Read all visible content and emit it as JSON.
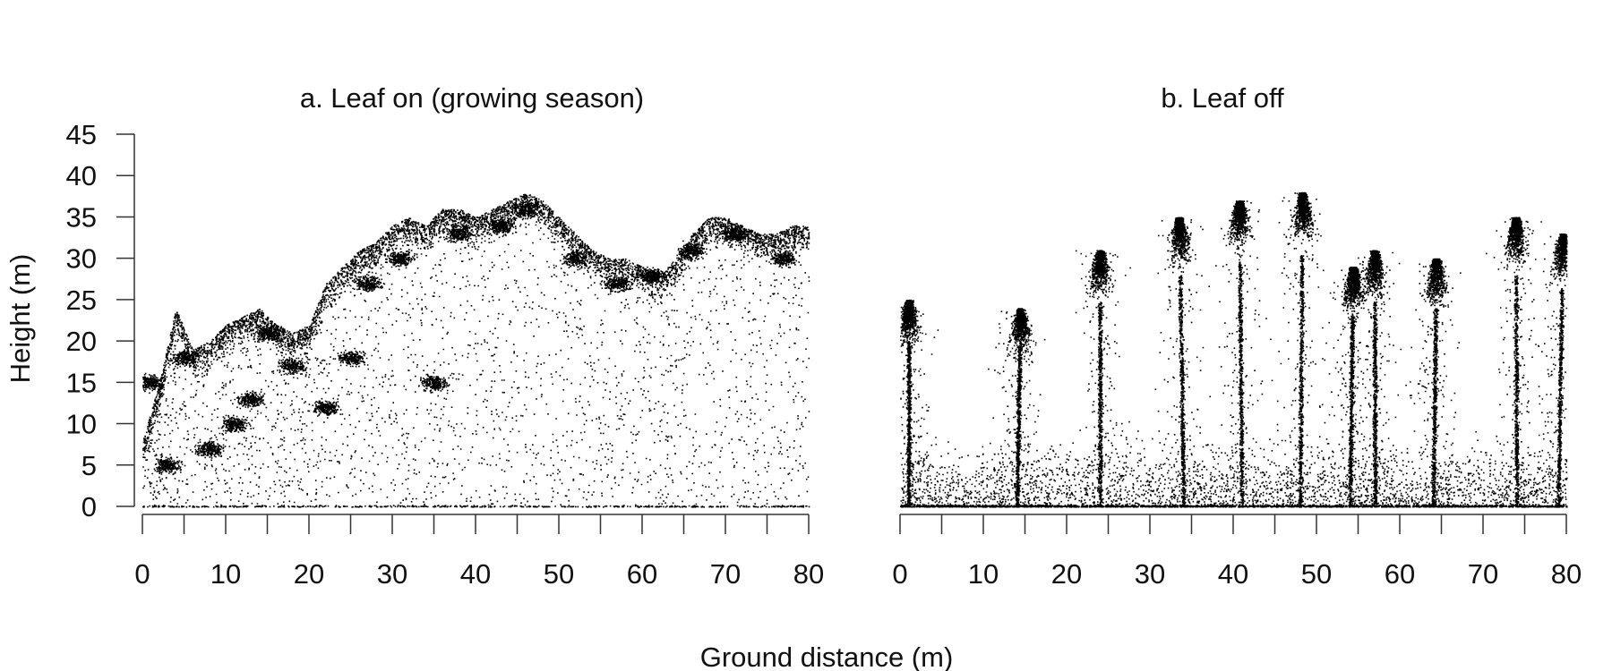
{
  "figure": {
    "xlabel": "Ground distance (m)",
    "ylabel": "Height (m)"
  },
  "chart_data": [
    {
      "type": "scatter",
      "title": "a. Leaf on (growing season)",
      "xlabel": "Ground distance (m)",
      "ylabel": "Height (m)",
      "xlim": [
        0,
        80
      ],
      "ylim": [
        0,
        45
      ],
      "x_ticks": [
        0,
        10,
        20,
        30,
        40,
        50,
        60,
        70,
        80
      ],
      "x_minor_ticks": [
        5,
        15,
        25,
        35,
        45,
        55,
        65,
        75
      ],
      "y_ticks": [
        0,
        5,
        10,
        15,
        20,
        25,
        30,
        35,
        40,
        45
      ],
      "grid": false,
      "point_color": "#000000",
      "canopy_top": [
        [
          0,
          8
        ],
        [
          2,
          15
        ],
        [
          4,
          24
        ],
        [
          6,
          19
        ],
        [
          8,
          20
        ],
        [
          10,
          22
        ],
        [
          12,
          23
        ],
        [
          14,
          24
        ],
        [
          16,
          22
        ],
        [
          18,
          21
        ],
        [
          20,
          22
        ],
        [
          22,
          27
        ],
        [
          24,
          29
        ],
        [
          26,
          31
        ],
        [
          28,
          32
        ],
        [
          30,
          34
        ],
        [
          32,
          35
        ],
        [
          34,
          34
        ],
        [
          36,
          36
        ],
        [
          38,
          36
        ],
        [
          40,
          35
        ],
        [
          42,
          36
        ],
        [
          44,
          37
        ],
        [
          46,
          38
        ],
        [
          48,
          37
        ],
        [
          50,
          35
        ],
        [
          52,
          33
        ],
        [
          54,
          31
        ],
        [
          56,
          30
        ],
        [
          58,
          30
        ],
        [
          60,
          29
        ],
        [
          62,
          28
        ],
        [
          64,
          30
        ],
        [
          66,
          33
        ],
        [
          68,
          35
        ],
        [
          70,
          35
        ],
        [
          72,
          34
        ],
        [
          74,
          33
        ],
        [
          76,
          33
        ],
        [
          78,
          34
        ],
        [
          80,
          34
        ]
      ],
      "dense_clusters": [
        [
          3,
          5
        ],
        [
          8,
          7
        ],
        [
          11,
          10
        ],
        [
          13,
          13
        ],
        [
          15,
          21
        ],
        [
          18,
          17
        ],
        [
          22,
          12
        ],
        [
          25,
          18
        ],
        [
          27,
          27
        ],
        [
          31,
          30
        ],
        [
          35,
          15
        ],
        [
          38,
          33
        ],
        [
          43,
          34
        ],
        [
          46,
          36
        ],
        [
          52,
          30
        ],
        [
          57,
          27
        ],
        [
          61,
          28
        ],
        [
          66,
          31
        ],
        [
          71,
          33
        ],
        [
          77,
          30
        ],
        [
          1,
          15
        ],
        [
          5,
          18
        ]
      ],
      "ground_level": 0
    },
    {
      "type": "scatter",
      "title": "b. Leaf off",
      "xlabel": "Ground distance (m)",
      "ylabel": "Height (m)",
      "xlim": [
        0,
        80
      ],
      "ylim": [
        0,
        45
      ],
      "x_ticks": [
        0,
        10,
        20,
        30,
        40,
        50,
        60,
        70,
        80
      ],
      "x_minor_ticks": [
        5,
        15,
        25,
        35,
        45,
        55,
        65,
        75
      ],
      "grid": false,
      "point_color": "#000000",
      "trees": [
        {
          "x": 1,
          "top": 25
        },
        {
          "x": 14,
          "top": 24
        },
        {
          "x": 24,
          "top": 31
        },
        {
          "x": 34,
          "top": 35
        },
        {
          "x": 41,
          "top": 37
        },
        {
          "x": 48,
          "top": 38
        },
        {
          "x": 54,
          "top": 29
        },
        {
          "x": 57,
          "top": 31
        },
        {
          "x": 64,
          "top": 30
        },
        {
          "x": 74,
          "top": 35
        },
        {
          "x": 79,
          "top": 33
        }
      ],
      "understory_top": 10,
      "ground_level": 0
    }
  ]
}
